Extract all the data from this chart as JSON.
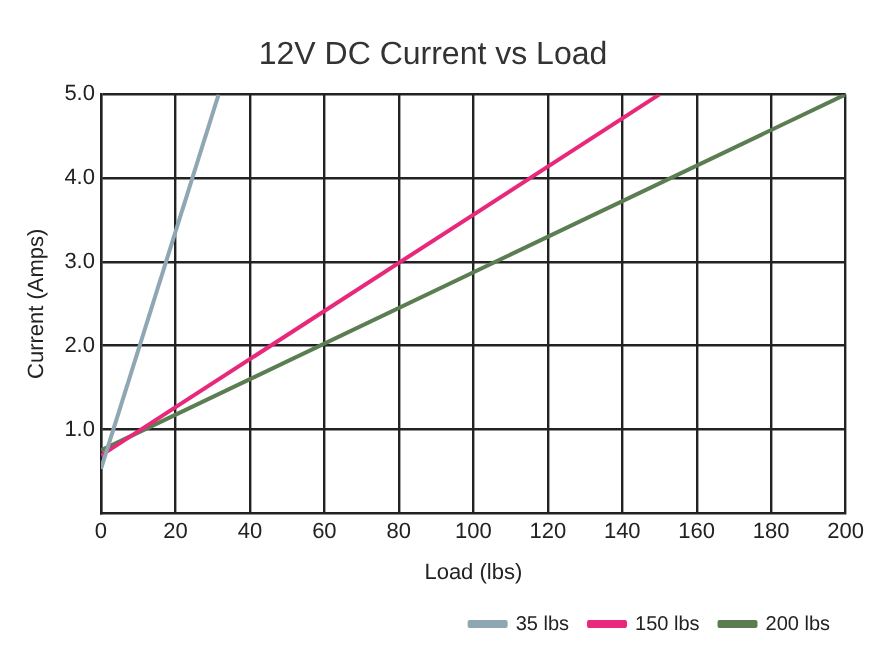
{
  "chart_data": {
    "type": "line",
    "title": "12V DC Current vs Load",
    "xlabel": "Load (lbs)",
    "ylabel": "Current (Amps)",
    "series": [
      {
        "name": "35 lbs",
        "color": "#8fa6b3",
        "x": [
          0,
          31.6
        ],
        "values": [
          0.53,
          5.0
        ]
      },
      {
        "name": "150 lbs",
        "color": "#e8287a",
        "x": [
          0,
          150
        ],
        "values": [
          0.69,
          5.0
        ]
      },
      {
        "name": "200 lbs",
        "color": "#5a7d52",
        "x": [
          0,
          200
        ],
        "values": [
          0.75,
          5.0
        ]
      }
    ],
    "xlim": [
      0,
      200
    ],
    "xticks": [
      0,
      20,
      40,
      60,
      80,
      100,
      120,
      140,
      160,
      180,
      200
    ],
    "ylim": [
      0,
      5
    ],
    "yticks": [
      {
        "value": 1,
        "label": "1.0"
      },
      {
        "value": 2,
        "label": "2.0"
      },
      {
        "value": 3,
        "label": "3.0"
      },
      {
        "value": 4,
        "label": "4.0"
      },
      {
        "value": 5,
        "label": "5.0"
      }
    ],
    "grid": true,
    "legend": "bottom right",
    "marker": "none",
    "line_style": "solid"
  }
}
